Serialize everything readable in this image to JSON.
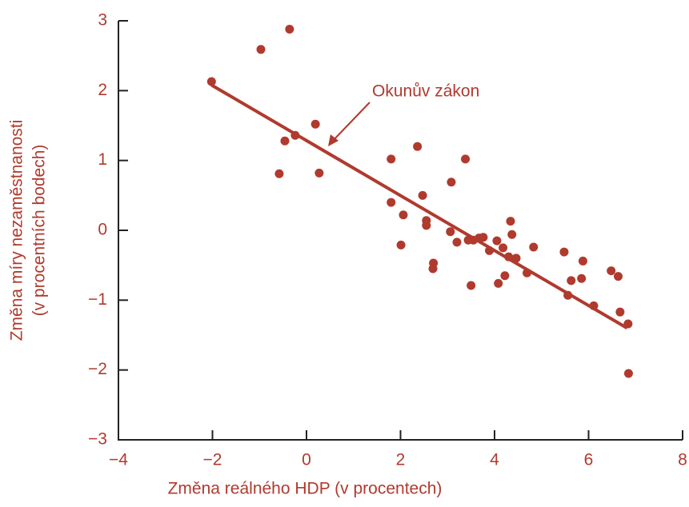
{
  "chart_data": {
    "type": "scatter",
    "xlabel": "Změna reálného HDP (v procentech)",
    "ylabel": [
      "Změna míry nezaměstnanosti",
      "(v procentních bodech)"
    ],
    "annotation": "Okunův zákon",
    "color": "#b03a2e",
    "x": [
      -2.02,
      -0.97,
      -0.36,
      -0.46,
      -0.24,
      -0.58,
      0.19,
      0.27,
      1.8,
      2.36,
      1.8,
      2.06,
      2.01,
      2.47,
      2.55,
      2.55,
      2.7,
      2.69,
      3.08,
      3.06,
      3.2,
      3.38,
      3.44,
      3.5,
      3.55,
      3.67,
      3.76,
      3.89,
      4.05,
      4.08,
      4.18,
      4.22,
      4.34,
      4.37,
      4.3,
      4.46,
      4.69,
      4.83,
      5.48,
      5.56,
      5.63,
      5.85,
      5.88,
      6.11,
      6.48,
      6.63,
      6.67,
      6.84,
      6.85
    ],
    "y": [
      2.13,
      2.59,
      2.88,
      1.28,
      1.36,
      0.81,
      1.52,
      0.82,
      1.02,
      1.2,
      0.4,
      0.22,
      -0.21,
      0.5,
      0.14,
      0.07,
      -0.47,
      -0.55,
      0.69,
      -0.02,
      -0.17,
      1.02,
      -0.14,
      -0.79,
      -0.14,
      -0.11,
      -0.1,
      -0.29,
      -0.15,
      -0.76,
      -0.25,
      -0.65,
      0.13,
      -0.06,
      -0.38,
      -0.4,
      -0.61,
      -0.24,
      -0.31,
      -0.93,
      -0.72,
      -0.69,
      -0.44,
      -1.08,
      -0.58,
      -0.66,
      -1.17,
      -1.34,
      -2.05
    ],
    "fit_line": {
      "x": [
        -2.02,
        6.82
      ],
      "y": [
        2.08,
        -1.4
      ],
      "color": "#b03a2e"
    },
    "xlim": [
      -4,
      8
    ],
    "ylim": [
      -3,
      3
    ],
    "xticks": [
      {
        "value": -4,
        "label": "−4"
      },
      {
        "value": -2,
        "label": "−2"
      },
      0,
      2,
      4,
      6,
      8
    ],
    "yticks": [
      {
        "value": -3,
        "label": "−3"
      },
      {
        "value": -2,
        "label": "−2"
      },
      {
        "value": -1,
        "label": "−1"
      },
      0,
      1,
      2,
      3
    ]
  }
}
